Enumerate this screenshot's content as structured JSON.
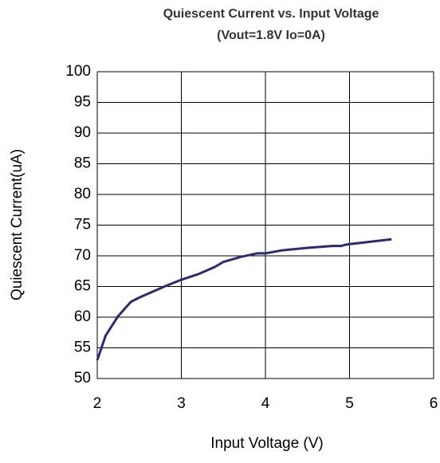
{
  "chart_data": {
    "type": "line",
    "title": "Quiescent Current vs. Input Voltage",
    "subtitle": "(Vout=1.8V Io=0A)",
    "x_label": "Input  Voltage (V)",
    "y_label": "Quiescent Current(uA)",
    "series": [
      {
        "name": "Quiescent Current",
        "color": "#2b2a72",
        "x": [
          2.0,
          2.1,
          2.25,
          2.4,
          2.5,
          2.8,
          3.0,
          3.2,
          3.4,
          3.5,
          3.7,
          3.9,
          4.0,
          4.2,
          4.5,
          4.8,
          4.9,
          4.95,
          5.0,
          5.5
        ],
        "values": [
          53,
          57,
          60.2,
          62.5,
          63.2,
          65,
          66.1,
          67,
          68.2,
          69,
          69.8,
          70.4,
          70.4,
          70.9,
          71.3,
          71.6,
          71.6,
          71.8,
          71.9,
          72.7
        ]
      }
    ],
    "xlim": [
      2,
      6
    ],
    "xticks": [
      2,
      3,
      4,
      5,
      6
    ],
    "ylim": [
      50,
      100
    ],
    "yticks": [
      50,
      55,
      60,
      65,
      70,
      75,
      80,
      85,
      90,
      95,
      100
    ],
    "grid": true
  }
}
